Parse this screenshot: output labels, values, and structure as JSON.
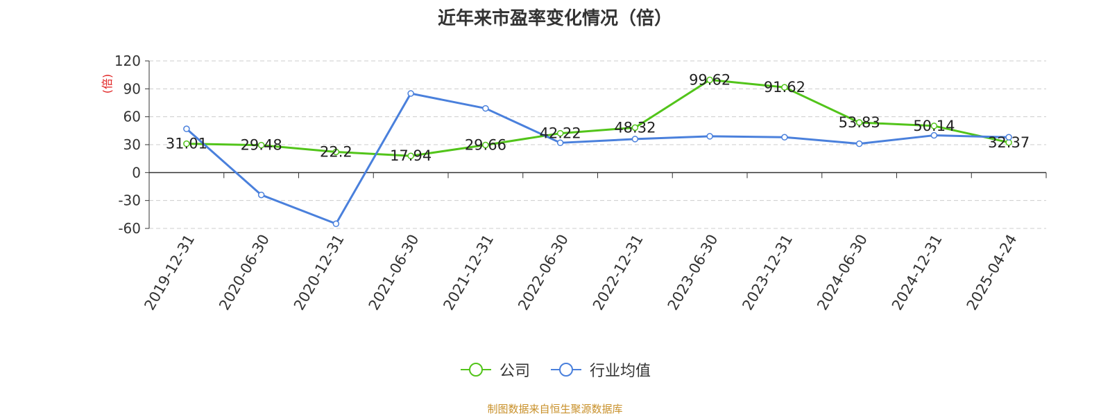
{
  "chart_data": {
    "type": "line",
    "title": "近年来市盈率变化情况（倍）",
    "ylabel": "(倍)",
    "categories": [
      "2019-12-31",
      "2020-06-30",
      "2020-12-31",
      "2021-06-30",
      "2021-12-31",
      "2022-06-30",
      "2022-12-31",
      "2023-06-30",
      "2023-12-31",
      "2024-06-30",
      "2024-12-31",
      "2025-04-24"
    ],
    "yticks": [
      "-60",
      "-30",
      "0",
      "30",
      "60",
      "90",
      "120"
    ],
    "ylim": [
      -60,
      120
    ],
    "grid": true,
    "legend_position": "bottom-center",
    "series": [
      {
        "name": "公司",
        "color": "#52c41a",
        "show_labels": true,
        "values": [
          31.01,
          29.48,
          22.2,
          17.94,
          29.66,
          42.22,
          48.32,
          99.62,
          91.62,
          53.83,
          50.14,
          32.37
        ],
        "labels": [
          "31.01",
          "29.48",
          "22.2",
          "17.94",
          "29.66",
          "42.22",
          "48.32",
          "99.62",
          "91.62",
          "53.83",
          "50.14",
          "32.37"
        ]
      },
      {
        "name": "行业均值",
        "color": "#4a80dc",
        "show_labels": false,
        "values": [
          47,
          -24,
          -55,
          85,
          69,
          32,
          36,
          39,
          38,
          31,
          40,
          38
        ]
      }
    ],
    "source": "制图数据来自恒生聚源数据库"
  }
}
